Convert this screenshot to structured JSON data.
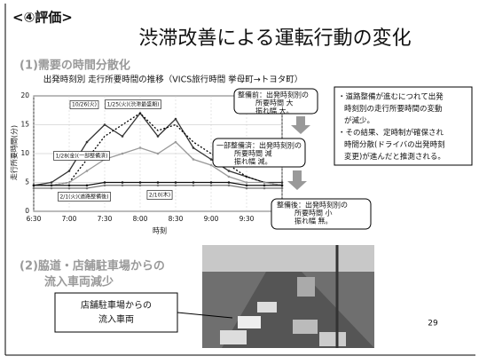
{
  "header": {
    "tag": "<④評価>",
    "title": "渋滞改善による運転行動の変化"
  },
  "section1": {
    "heading": "(1)需要の時間分散化",
    "chart": {
      "type": "line",
      "title": "出発時刻別 走行所要時間の推移（VICS旅行時間 挙母町→トヨタ町）",
      "y_label": "走行所要時間(分)",
      "x_label": "時刻",
      "categories": [
        "6:30",
        null,
        "7:00",
        null,
        "7:30",
        null,
        "8:00",
        null,
        "8:30",
        null,
        "9:00",
        null,
        "9:30",
        null,
        "10:00"
      ],
      "ylim": [
        0,
        20
      ],
      "yticks": [
        0,
        5,
        10,
        15,
        20
      ],
      "grid": true,
      "series": [
        {
          "name": "10/26(火)",
          "color": "#333333",
          "dashed": false,
          "values": [
            4.5,
            5,
            7,
            12,
            15,
            13,
            17,
            13,
            16,
            11,
            9,
            7,
            6,
            5,
            5
          ]
        },
        {
          "name": "1/25(火)(渋滞最盛期)",
          "color": "#000000",
          "dashed": true,
          "values": [
            4.5,
            4.5,
            5,
            9,
            13,
            15,
            17,
            14,
            15,
            12,
            10,
            8,
            6,
            5,
            4.5
          ]
        },
        {
          "name": "1/28(金)(一部整備済)",
          "color": "#999999",
          "dashed": false,
          "values": [
            4.5,
            4.5,
            5,
            7,
            9,
            10,
            11,
            10,
            12,
            9,
            8,
            6,
            5,
            5,
            4.5
          ]
        },
        {
          "name": "2/1(火)(道路整備後)",
          "color": "#111111",
          "dashed": false,
          "values": [
            4.5,
            4.5,
            4.5,
            4.5,
            5,
            5,
            5,
            5,
            5,
            5,
            5,
            5,
            4.5,
            4.5,
            4.5
          ]
        },
        {
          "name": "2/10(木)",
          "color": "#777777",
          "dashed": false,
          "values": [
            4,
            4,
            4,
            4,
            4.5,
            4.5,
            4.5,
            4.5,
            4.5,
            4.5,
            4.5,
            4.5,
            4,
            4,
            4
          ]
        }
      ]
    },
    "callouts": [
      {
        "lines": [
          "整備前：出発時刻別の",
          "所要時間 大",
          "振れ幅 大。"
        ]
      },
      {
        "lines": [
          "一部整備済：出発時刻別の",
          "所要時間 減",
          "振れ幅 減。"
        ]
      },
      {
        "lines": [
          "整備後：出発時刻別の",
          "所要時間 小",
          "振れ幅 無。"
        ]
      }
    ],
    "summary": [
      "・道路整備が進むにつれて出発",
      "時刻別の走行所要時間の変動",
      "が減少。",
      "・その結果、定時制が確保され",
      "時間分散(ドライバの出発時刻",
      "変更)が進んだと推測される。"
    ]
  },
  "section2": {
    "heading": [
      "(2)脇道・店舗駐車場からの",
      "流入車両減少"
    ],
    "photo_label": [
      "店舗駐車場からの",
      "流入車両"
    ]
  },
  "page_number": "29"
}
